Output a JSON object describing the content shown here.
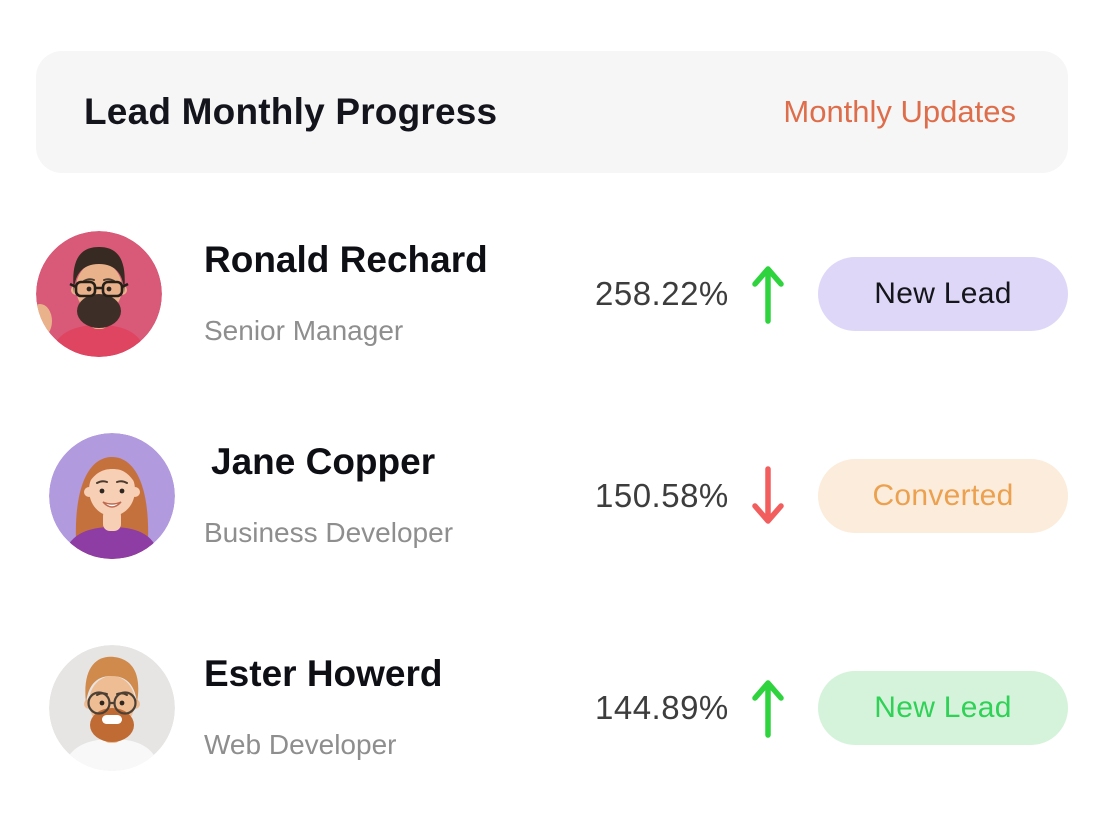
{
  "header": {
    "title": "Lead Monthly Progress",
    "updates_label": "Monthly Updates",
    "updates_color": "#de6e4b",
    "background": "#f6f6f6"
  },
  "rows": [
    {
      "name": "Ronald Rechard",
      "role": "Senior Manager",
      "percent": "258.22%",
      "trend": "up",
      "trend_color": "#2ed33e",
      "badge": {
        "label": "New Lead",
        "bg": "#ded7f8",
        "text_color": "#15151c"
      },
      "avatar": {
        "description": "man with dark hair, glasses and beard on pink background",
        "bg": "#d85a78",
        "hair": "#362a22",
        "skin": "#e9b28b",
        "beard": "#3d2f27",
        "shirt": "#df4560",
        "glasses": "square",
        "hairstyle": "short",
        "hand": true
      }
    },
    {
      "name": "Jane Copper",
      "role": "Business Developer",
      "percent": "150.58%",
      "trend": "down",
      "trend_color": "#f25e5e",
      "badge": {
        "label": "Converted",
        "bg": "#fcecdb",
        "text_color": "#eba14f"
      },
      "avatar": {
        "description": "woman with long ginger hair on purple background",
        "bg": "#b29ade",
        "hair": "#c5713d",
        "skin": "#f6cfb5",
        "shirt": "#8d3da4",
        "glasses": null,
        "hairstyle": "long",
        "smile": true
      }
    },
    {
      "name": "Ester Howerd",
      "role": "Web Developer",
      "percent": "144.89%",
      "trend": "up",
      "trend_color": "#2ed33e",
      "badge": {
        "label": "New Lead",
        "bg": "#d5f3da",
        "text_color": "#2fd156"
      },
      "avatar": {
        "description": "man with ginger pompadour, round glasses and big beard on gray background",
        "bg": "#e6e5e4",
        "hair": "#d08a4c",
        "skin": "#eebd94",
        "beard": "#c06b33",
        "shirt": "#f8f8f8",
        "glasses": "round",
        "hairstyle": "pompadour",
        "teeth": true
      }
    }
  ]
}
